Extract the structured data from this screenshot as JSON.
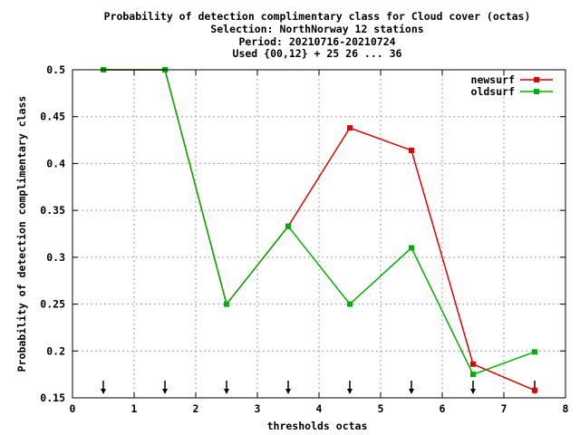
{
  "chart_data": {
    "type": "line",
    "title_lines": [
      "Probability of detection complimentary class  for Cloud cover (octas)",
      "Selection: NorthNorway     12 stations",
      "Period: 20210716-20210724",
      "Used {00,12} + 25 26 ... 36"
    ],
    "xlabel": "thresholds octas",
    "ylabel": "Probability of detection complimentary class",
    "xlim": [
      0,
      8
    ],
    "ylim": [
      0.15,
      0.5
    ],
    "xticks": [
      "0",
      "1",
      "2",
      "3",
      "4",
      "5",
      "6",
      "7",
      "8"
    ],
    "yticks": [
      "0.15",
      "0.2",
      "0.25",
      "0.3",
      "0.35",
      "0.4",
      "0.45",
      "0.5"
    ],
    "grid": true,
    "legend_position": "top-right",
    "threshold_markers": [
      0.5,
      1.5,
      2.5,
      3.5,
      4.5,
      5.5,
      6.5,
      7.5
    ],
    "series": [
      {
        "name": "newsurf",
        "color": "#e00000",
        "x": [
          0.5,
          1.5,
          2.5,
          3.5,
          4.5,
          5.5,
          6.5,
          7.5
        ],
        "y": [
          0.5,
          0.5,
          0.25,
          0.333,
          0.438,
          0.414,
          0.186,
          0.158
        ]
      },
      {
        "name": "oldsurf",
        "color": "#00b000",
        "x": [
          0.5,
          1.5,
          2.5,
          3.5,
          4.5,
          5.5,
          6.5,
          7.5
        ],
        "y": [
          0.5,
          0.5,
          0.25,
          0.333,
          0.25,
          0.31,
          0.175,
          0.199
        ]
      }
    ]
  }
}
